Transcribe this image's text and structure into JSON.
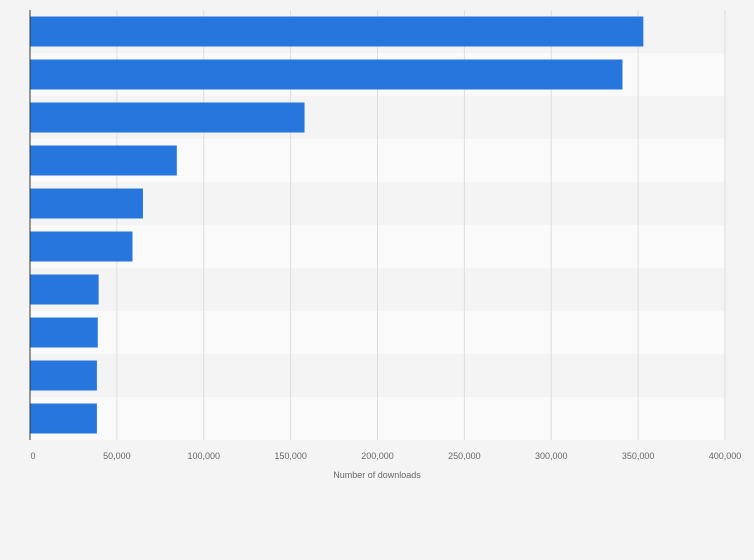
{
  "chart_data": {
    "type": "bar",
    "orientation": "horizontal",
    "categories": [
      "",
      "",
      "",
      "",
      "",
      "",
      "",
      "",
      "",
      ""
    ],
    "values": [
      353000,
      341000,
      158000,
      84500,
      65000,
      59000,
      39500,
      39000,
      38500,
      38500
    ],
    "title": "",
    "xlabel": "Number of downloads",
    "ylabel": "",
    "xlim": [
      0,
      400000
    ],
    "xticks": [
      0,
      50000,
      100000,
      150000,
      200000,
      250000,
      300000,
      350000,
      400000
    ],
    "xtick_labels": [
      "0",
      "50,000",
      "100,000",
      "150,000",
      "200,000",
      "250,000",
      "300,000",
      "350,000",
      "400,000"
    ],
    "grid": "vertical",
    "bar_color": "#2776dd",
    "band_colors": [
      "#f4f4f4",
      "#fafafa"
    ],
    "gridline_color": "#dddddd"
  }
}
